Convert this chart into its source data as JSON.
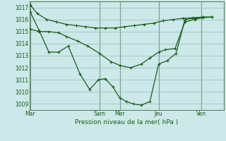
{
  "background_color": "#cce8e8",
  "grid_color": "#99bbbb",
  "line_color": "#1a5c1a",
  "font_color": "#1a5c1a",
  "xlabel": "Pression niveau de la mer( hPa )",
  "ylim": [
    1008.5,
    1017.5
  ],
  "yticks": [
    1009,
    1010,
    1011,
    1012,
    1013,
    1014,
    1015,
    1016,
    1017
  ],
  "xlim": [
    0,
    10.0
  ],
  "xtick_labels": [
    "Mar",
    "Sam",
    "Mer",
    "Jeu",
    "Ven"
  ],
  "xtick_positions": [
    0.05,
    3.6,
    4.65,
    6.65,
    8.85
  ],
  "vlines_x": [
    0.05,
    3.6,
    4.65,
    6.65,
    8.85
  ],
  "series1_x": [
    0.05,
    0.4,
    0.9,
    1.4,
    1.9,
    2.4,
    2.9,
    3.4,
    3.9,
    4.4,
    4.9,
    5.4,
    5.9,
    6.4,
    6.9,
    7.4,
    7.9,
    8.4,
    8.9,
    9.4
  ],
  "series1_y": [
    1017.2,
    1016.5,
    1016.0,
    1015.8,
    1015.6,
    1015.5,
    1015.4,
    1015.3,
    1015.3,
    1015.3,
    1015.4,
    1015.5,
    1015.6,
    1015.7,
    1015.9,
    1016.0,
    1016.1,
    1016.15,
    1016.2,
    1016.2
  ],
  "series2_x": [
    0.05,
    0.5,
    1.0,
    1.5,
    2.0,
    2.6,
    3.1,
    3.55,
    3.9,
    4.3,
    4.65,
    5.0,
    5.35,
    5.75,
    6.2,
    6.65,
    7.1,
    7.55,
    8.0,
    8.5,
    8.9,
    9.4
  ],
  "series2_y": [
    1016.6,
    1015.1,
    1013.3,
    1013.3,
    1013.8,
    1011.5,
    1010.2,
    1011.0,
    1011.1,
    1010.4,
    1009.5,
    1009.2,
    1009.0,
    1008.9,
    1009.2,
    1012.3,
    1012.6,
    1013.2,
    1016.0,
    1016.1,
    1016.2,
    1016.2
  ],
  "series3_x": [
    0.05,
    0.5,
    1.0,
    1.5,
    1.9,
    2.5,
    3.0,
    3.6,
    4.2,
    4.65,
    5.2,
    5.75,
    6.2,
    6.65,
    7.0,
    7.5,
    8.0,
    8.5,
    8.9,
    9.4
  ],
  "series3_y": [
    1015.2,
    1015.0,
    1015.0,
    1014.9,
    1014.6,
    1014.2,
    1013.8,
    1013.2,
    1012.5,
    1012.2,
    1012.0,
    1012.3,
    1012.8,
    1013.3,
    1013.5,
    1013.6,
    1015.8,
    1016.0,
    1016.15,
    1016.2
  ]
}
